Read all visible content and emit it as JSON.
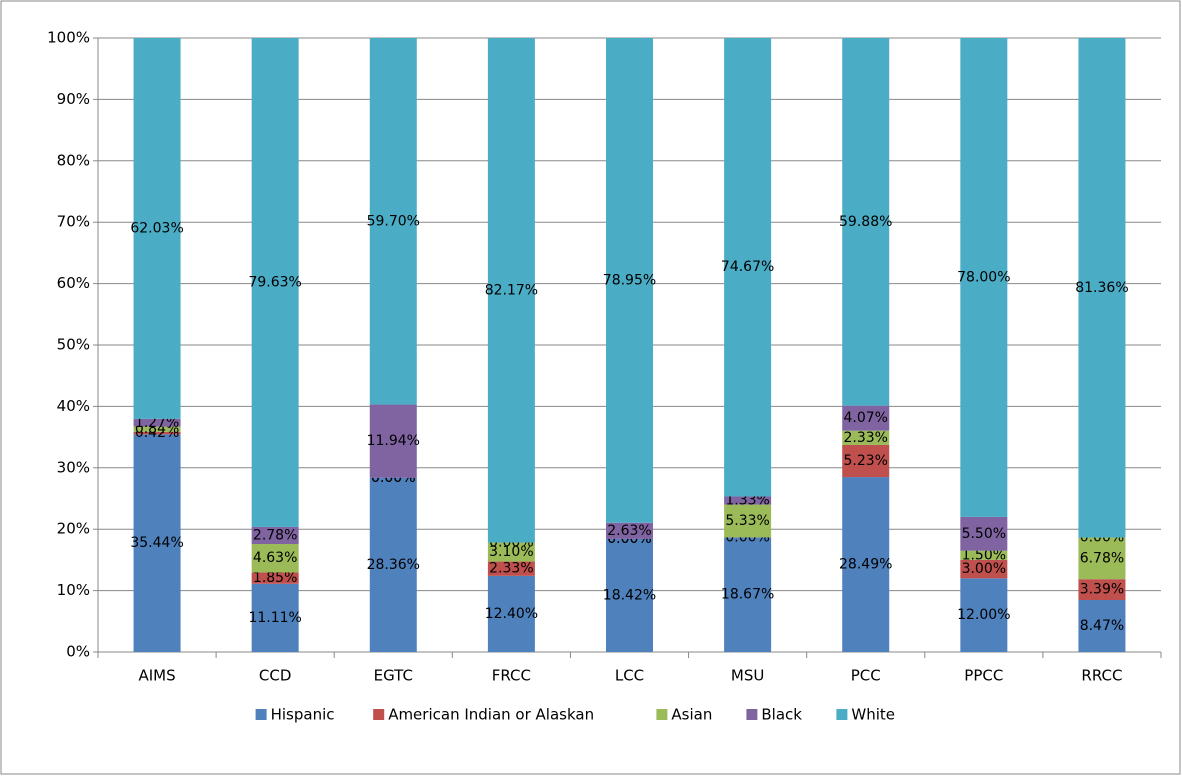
{
  "chart_data": {
    "type": "stacked-bar",
    "categories": [
      "AIMS",
      "CCD",
      "EGTC",
      "FRCC",
      "LCC",
      "MSU",
      "PCC",
      "PPCC",
      "RRCC"
    ],
    "series": [
      {
        "name": "Hispanic",
        "color": "#4f81bd",
        "values": [
          35.44,
          11.11,
          28.36,
          12.4,
          18.42,
          18.67,
          28.49,
          12.0,
          8.47
        ],
        "value_labels": [
          "35.44%",
          "11.11%",
          "28.36%",
          "12.40%",
          "18.42%",
          "18.67%",
          "28.49%",
          "12.00%",
          "8.47%"
        ]
      },
      {
        "name": "American Indian or Alaskan",
        "color": "#c0504d",
        "values": [
          0.42,
          1.85,
          0.0,
          2.33,
          0.0,
          0.0,
          5.23,
          3.0,
          3.39
        ],
        "value_labels": [
          "0.42%",
          "1.85%",
          "0.00%",
          "2.33%",
          "0.00%",
          "0.00%",
          "5.23%",
          "3.00%",
          "3.39%"
        ]
      },
      {
        "name": "Asian",
        "color": "#9bbb59",
        "values": [
          0.84,
          4.63,
          0.0,
          3.1,
          0.0,
          5.33,
          2.33,
          1.5,
          6.78
        ],
        "value_labels": [
          "0.84%",
          "4.63%",
          "0.00%",
          "3.10%",
          "0.00%",
          "5.33%",
          "2.33%",
          "1.50%",
          "6.78%"
        ]
      },
      {
        "name": "Black",
        "color": "#8064a2",
        "values": [
          1.27,
          2.78,
          11.94,
          0.0,
          2.63,
          1.33,
          4.07,
          5.5,
          0.0
        ],
        "value_labels": [
          "1.27%",
          "2.78%",
          "11.94%",
          "0.00%",
          "2.63%",
          "1.33%",
          "4.07%",
          "5.50%",
          "0.00%"
        ]
      },
      {
        "name": "White",
        "color": "#4bacc6",
        "values": [
          62.03,
          79.63,
          59.7,
          82.17,
          78.95,
          74.67,
          59.88,
          78.0,
          81.36
        ],
        "value_labels": [
          "62.03%",
          "79.63%",
          "59.70%",
          "82.17%",
          "78.95%",
          "74.67%",
          "59.88%",
          "78.00%",
          "81.36%"
        ]
      }
    ],
    "ylim": [
      0,
      100
    ],
    "yticks": [
      {
        "value": 0,
        "label": "0%"
      },
      {
        "value": 10,
        "label": "10%"
      },
      {
        "value": 20,
        "label": "20%"
      },
      {
        "value": 30,
        "label": "30%"
      },
      {
        "value": 40,
        "label": "40%"
      },
      {
        "value": 50,
        "label": "50%"
      },
      {
        "value": 60,
        "label": "60%"
      },
      {
        "value": 70,
        "label": "70%"
      },
      {
        "value": 80,
        "label": "80%"
      },
      {
        "value": 90,
        "label": "90%"
      },
      {
        "value": 100,
        "label": "100%"
      }
    ],
    "grid": true,
    "legend": "bottom"
  }
}
